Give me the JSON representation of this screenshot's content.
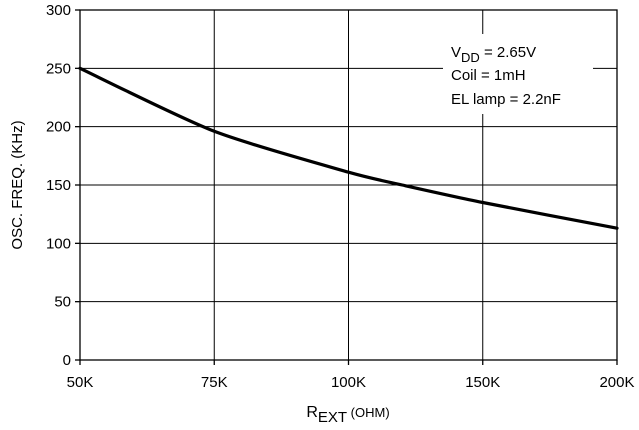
{
  "chart_data": {
    "type": "line",
    "title": "",
    "xlabel": {
      "main": "R",
      "sub": "EXT",
      "unit": " (OHM)"
    },
    "ylabel": "OSC. FREQ. (KHz)",
    "x_categories": [
      "50K",
      "75K",
      "100K",
      "150K",
      "200K"
    ],
    "y_ticks": [
      0,
      50,
      100,
      150,
      200,
      250,
      300
    ],
    "ylim": [
      0,
      300
    ],
    "grid": true,
    "series": [
      {
        "x": [
          "50K",
          "75K",
          "100K",
          "120K",
          "150K",
          "200K"
        ],
        "x_values_ohm": [
          50000,
          75000,
          100000,
          120000,
          150000,
          200000
        ],
        "y": [
          250,
          196,
          161,
          150,
          135,
          113
        ]
      }
    ],
    "annotations": [
      {
        "main": "V",
        "sub": "DD",
        "rest": " = 2.65V"
      },
      {
        "text": "Coil = 1mH"
      },
      {
        "text": "EL lamp = 2.2nF"
      }
    ]
  }
}
